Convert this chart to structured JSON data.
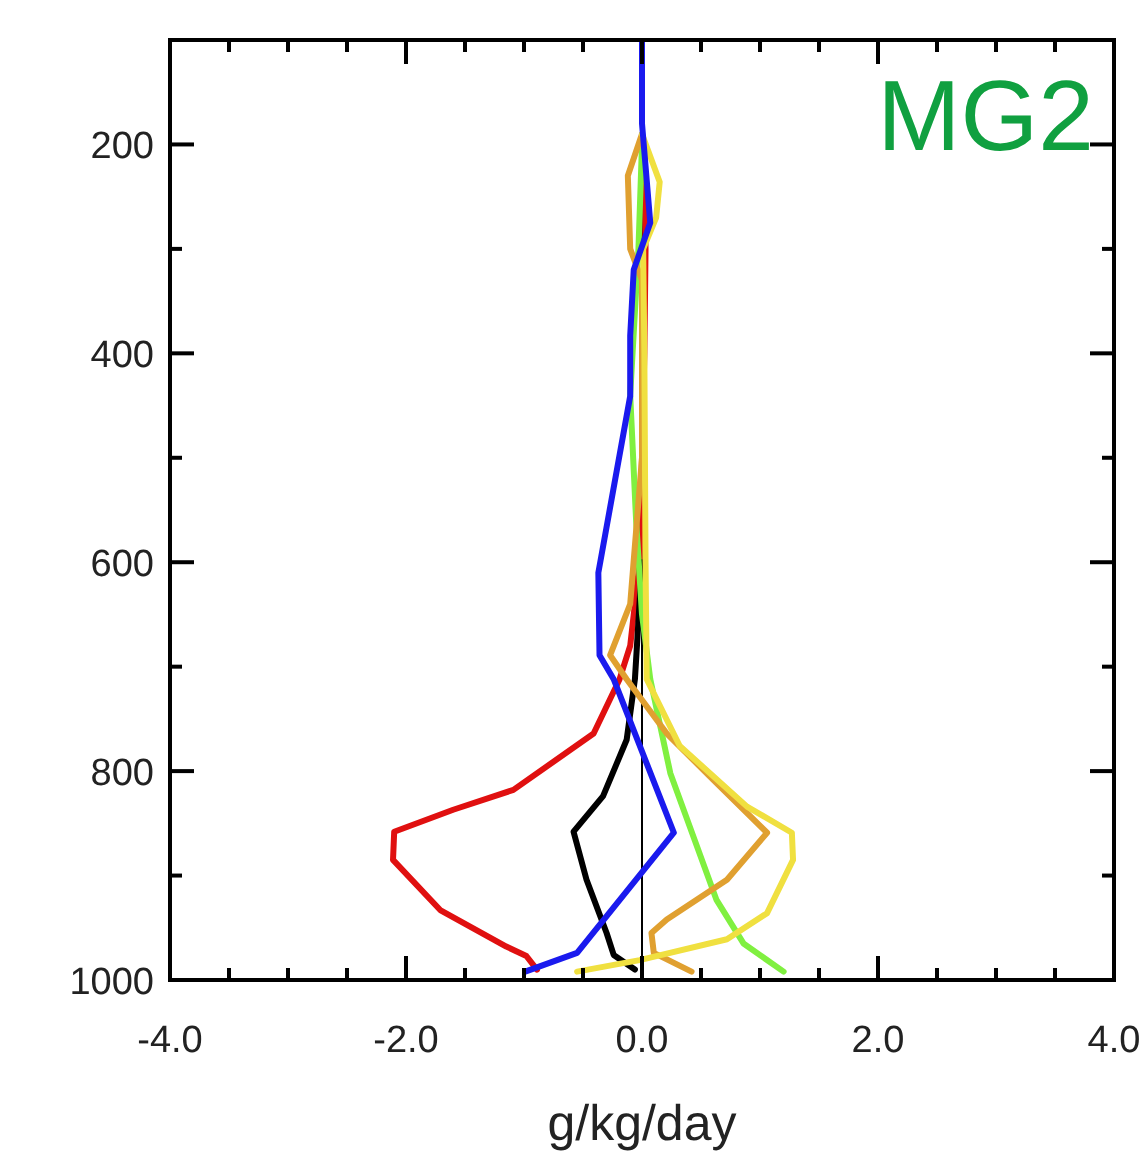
{
  "chart_data": {
    "type": "line",
    "title": "MG2",
    "xlabel": "g/kg/day",
    "xlim": [
      -4,
      4
    ],
    "xticks": [
      {
        "value": -4,
        "label": "-4.0"
      },
      {
        "value": -3.5,
        "label": null
      },
      {
        "value": -3,
        "label": null
      },
      {
        "value": -2.5,
        "label": null
      },
      {
        "value": -2,
        "label": "-2.0"
      },
      {
        "value": -1.5,
        "label": null
      },
      {
        "value": -1,
        "label": null
      },
      {
        "value": -0.5,
        "label": null
      },
      {
        "value": 0,
        "label": "0.0"
      },
      {
        "value": 0.5,
        "label": null
      },
      {
        "value": 1,
        "label": null
      },
      {
        "value": 1.5,
        "label": null
      },
      {
        "value": 2,
        "label": "2.0"
      },
      {
        "value": 2.5,
        "label": null
      },
      {
        "value": 3,
        "label": null
      },
      {
        "value": 3.5,
        "label": null
      },
      {
        "value": 4,
        "label": "4.0"
      }
    ],
    "ylim": [
      1000,
      100
    ],
    "yticks": [
      200,
      {
        "value": 300,
        "label": null
      },
      400,
      {
        "value": 500,
        "label": null
      },
      600,
      {
        "value": 700,
        "label": null
      },
      800,
      {
        "value": 900,
        "label": null
      },
      1000
    ],
    "ref_lines": [
      {
        "axis": "x",
        "value": 0,
        "color": "#000000"
      }
    ],
    "grid": false,
    "marker": "none",
    "line_style": "solid",
    "series": [
      {
        "color": "#e01010",
        "x": [
          0.02,
          0.03,
          0.02,
          0.0,
          -0.02,
          -0.1,
          -0.19,
          -0.41,
          -1.09,
          -1.6,
          -2.1,
          -2.11,
          -1.71,
          -1.15,
          -0.98,
          -0.89
        ],
        "values": [
          200,
          300,
          400,
          500,
          600,
          680,
          712,
          764,
          818,
          837,
          858,
          885,
          933,
          968,
          977,
          990
        ]
      },
      {
        "color": "#000000",
        "x": [
          0.0,
          -0.06,
          -0.13,
          -0.33,
          -0.58,
          -0.47,
          -0.3,
          -0.24,
          -0.06
        ],
        "values": [
          600,
          712,
          770,
          824,
          858,
          904,
          955,
          976,
          990
        ]
      },
      {
        "color": "#80f040",
        "x": [
          0.0,
          -0.03,
          -0.1,
          -0.05,
          0.0,
          0.07,
          0.24,
          0.63,
          0.86,
          1.2
        ],
        "values": [
          200,
          300,
          440,
          560,
          650,
          712,
          802,
          923,
          965,
          992
        ]
      },
      {
        "color": "#e0a030",
        "x": [
          0.0,
          -0.12,
          -0.1,
          0.0,
          0.0,
          -0.1,
          -0.27,
          -0.13,
          0.21,
          0.6,
          1.06,
          0.72,
          0.21,
          0.08,
          0.1,
          0.42
        ],
        "values": [
          190,
          230,
          300,
          330,
          500,
          640,
          689,
          712,
          764,
          808,
          859,
          904,
          942,
          955,
          974,
          992
        ]
      },
      {
        "color": "#f0e040",
        "x": [
          0.0,
          0.15,
          0.12,
          0.01,
          0.02,
          0.03,
          0.04,
          0.32,
          0.89,
          1.27,
          1.28,
          1.06,
          0.72,
          -0.02,
          -0.55
        ],
        "values": [
          190,
          236,
          270,
          300,
          400,
          600,
          712,
          776,
          834,
          859,
          885,
          936,
          961,
          981,
          992
        ]
      },
      {
        "color": "#1a1aee",
        "x": [
          0.0,
          0.0,
          0.07,
          -0.07,
          -0.1,
          -0.1,
          -0.37,
          -0.36,
          -0.24,
          0.27,
          -0.55,
          -0.99
        ],
        "values": [
          100,
          180,
          275,
          320,
          383,
          441,
          610,
          689,
          712,
          859,
          974,
          992
        ]
      }
    ]
  }
}
